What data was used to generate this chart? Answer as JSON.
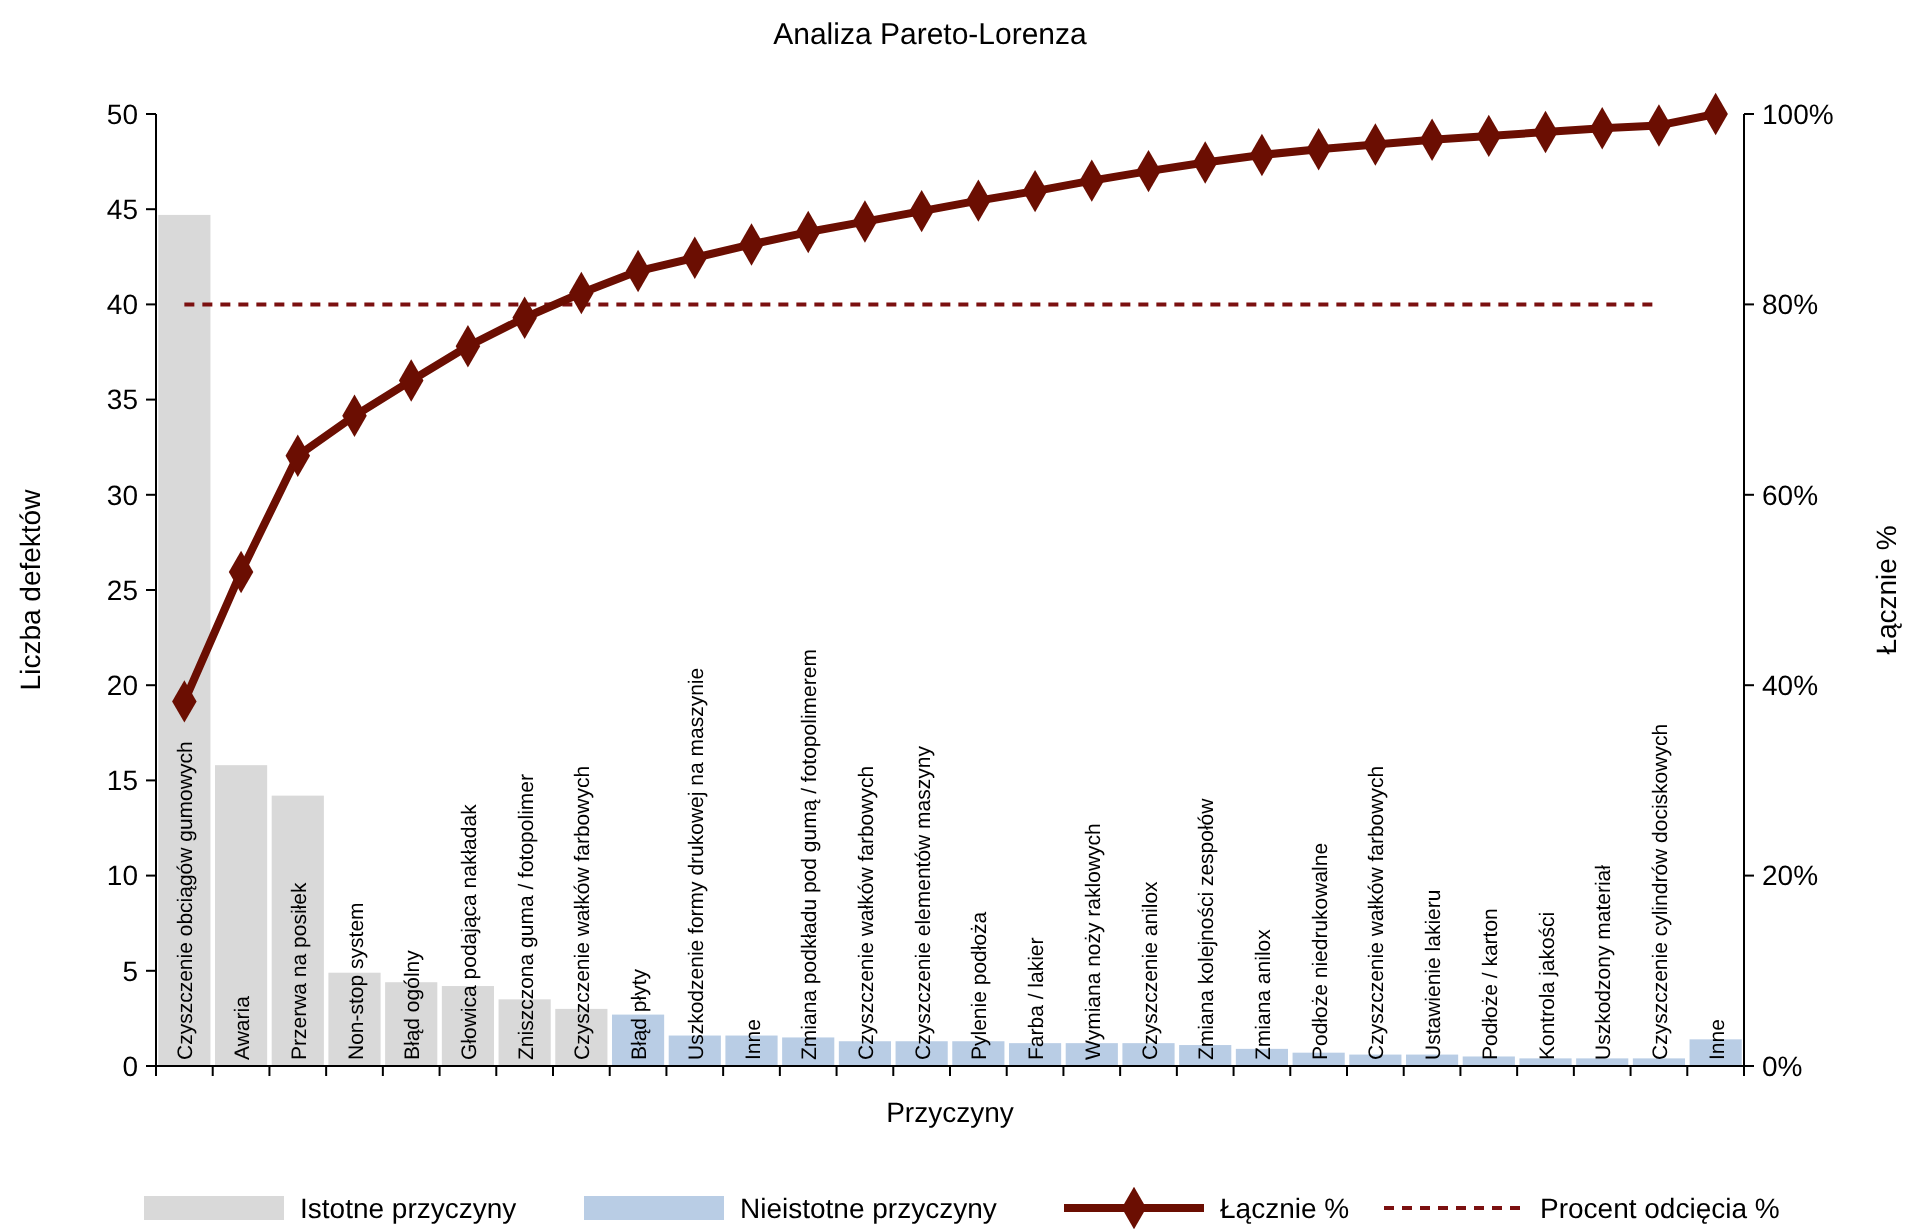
{
  "chart_data": {
    "type": "bar",
    "title": "Analiza Pareto-Lorenza",
    "xlabel": "Przyczyny",
    "ylabel": "Liczba defektów",
    "y2label": "Łącznie %",
    "categories": [
      "Czyszczenie obciągów gumowych",
      "Awaria",
      "Przerwa na posiłek",
      "Non-stop system",
      "Błąd ogólny",
      "Głowica podająca nakładak",
      "Zniszczona guma / fotopolimer",
      "Czyszczenie wałków farbowych",
      "Błąd płyty",
      "Uszkodzenie formy drukowej na maszynie",
      "Inne",
      "Zmiana podkładu pod gumą / fotopolimerem",
      "Czyszczenie wałków farbowych",
      "Czyszczenie elementów maszyny",
      "Pylenie podłoża",
      "Farba / lakier",
      "Wymiana noży raklowych",
      "Czyszczenie anilox",
      "Zmiana kolejności zespołów",
      "Zmiana anilox",
      "Podłoże niedrukowalne",
      "Czyszczenie wałków farbowych",
      "Ustawienie lakieru",
      "Podłoże / karton",
      "Kontrola jakości",
      "Uszkodzony materiał",
      "Czyszczenie cylindrów dociskowych",
      "Inne"
    ],
    "stacked": true,
    "series": [
      {
        "name": "Istotne przyczyny",
        "color": "#d9d9d9",
        "values": [
          44.7,
          15.8,
          14.2,
          4.9,
          4.4,
          4.2,
          3.5,
          3.0,
          null,
          null,
          null,
          null,
          null,
          null,
          null,
          null,
          null,
          null,
          null,
          null,
          null,
          null,
          null,
          null,
          null,
          null,
          null,
          null
        ]
      },
      {
        "name": "Nieistotne przyczyny",
        "color": "#b9cde5",
        "values": [
          null,
          null,
          null,
          null,
          null,
          null,
          null,
          null,
          2.7,
          1.6,
          1.6,
          1.5,
          1.3,
          1.3,
          1.3,
          1.2,
          1.2,
          1.2,
          1.1,
          0.9,
          0.7,
          0.6,
          0.6,
          0.5,
          0.4,
          0.4,
          0.4,
          1.4
        ]
      },
      {
        "name": "Łącznie %",
        "type": "line",
        "axis": "y2",
        "color": "#6b0e02",
        "marker": "diamond",
        "values": [
          38.3,
          51.9,
          64.1,
          68.3,
          72.0,
          75.6,
          78.6,
          81.2,
          83.5,
          84.9,
          86.3,
          87.6,
          88.7,
          89.8,
          90.9,
          91.9,
          93.0,
          94.0,
          94.9,
          95.7,
          96.3,
          96.8,
          97.3,
          97.7,
          98.1,
          98.5,
          98.8,
          100
        ]
      }
    ],
    "ref_lines": [
      {
        "axis": "y2",
        "value": 80,
        "label": "Procent odcięcia %",
        "color": "#7b1010",
        "line_style": "dashed"
      }
    ],
    "ylim": [
      0,
      50
    ],
    "yticks": [
      0,
      5,
      10,
      15,
      20,
      25,
      30,
      35,
      40,
      45,
      50
    ],
    "y2lim": [
      0,
      100
    ],
    "y2ticks": [
      {
        "value": 0,
        "label": "0%"
      },
      {
        "value": 20,
        "label": "20%"
      },
      {
        "value": 40,
        "label": "40%"
      },
      {
        "value": 60,
        "label": "60%"
      },
      {
        "value": 80,
        "label": "80%"
      },
      {
        "value": 100,
        "label": "100%"
      }
    ],
    "grid": false,
    "legend": "bottom"
  }
}
